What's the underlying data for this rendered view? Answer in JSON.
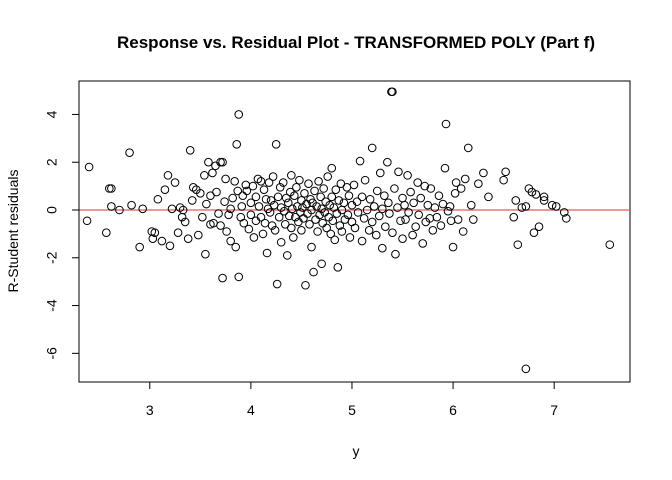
{
  "chart_data": {
    "type": "scatter",
    "title": "Response vs. Residual Plot - TRANSFORMED POLY (Part f)",
    "xlabel": "y",
    "ylabel": "R-Student residuals",
    "xlim": [
      2.3,
      7.75
    ],
    "ylim": [
      -7.2,
      5.4
    ],
    "xticks": [
      3,
      4,
      5,
      6,
      7
    ],
    "yticks": [
      -6,
      -4,
      -2,
      0,
      2,
      4
    ],
    "reference_line": {
      "y": 0,
      "color": "#e8595c"
    },
    "grid": false,
    "legend": "none",
    "point_color": "#000000",
    "points": [
      [
        2.4,
        1.8
      ],
      [
        2.38,
        -0.45
      ],
      [
        2.57,
        -0.95
      ],
      [
        2.6,
        0.9
      ],
      [
        2.62,
        0.9
      ],
      [
        2.62,
        0.15
      ],
      [
        2.7,
        0.0
      ],
      [
        2.8,
        2.4
      ],
      [
        2.82,
        0.2
      ],
      [
        2.9,
        -1.55
      ],
      [
        2.93,
        0.05
      ],
      [
        3.02,
        -0.9
      ],
      [
        3.03,
        -1.2
      ],
      [
        3.05,
        -0.95
      ],
      [
        3.08,
        0.45
      ],
      [
        3.12,
        -1.3
      ],
      [
        3.15,
        0.85
      ],
      [
        3.18,
        1.45
      ],
      [
        3.2,
        -1.5
      ],
      [
        3.22,
        0.05
      ],
      [
        3.25,
        1.15
      ],
      [
        3.28,
        -0.95
      ],
      [
        3.3,
        0.1
      ],
      [
        3.32,
        -0.3
      ],
      [
        3.33,
        0.0
      ],
      [
        3.35,
        -0.5
      ],
      [
        3.38,
        -1.2
      ],
      [
        3.4,
        2.5
      ],
      [
        3.42,
        0.4
      ],
      [
        3.43,
        0.95
      ],
      [
        3.46,
        0.85
      ],
      [
        3.48,
        -1.05
      ],
      [
        3.5,
        0.7
      ],
      [
        3.52,
        -0.3
      ],
      [
        3.54,
        1.45
      ],
      [
        3.55,
        -1.85
      ],
      [
        3.56,
        0.25
      ],
      [
        3.58,
        2.0
      ],
      [
        3.6,
        0.6
      ],
      [
        3.6,
        -0.6
      ],
      [
        3.62,
        1.55
      ],
      [
        3.63,
        -0.55
      ],
      [
        3.65,
        1.85
      ],
      [
        3.66,
        0.75
      ],
      [
        3.68,
        -0.15
      ],
      [
        3.7,
        2.0
      ],
      [
        3.7,
        -0.65
      ],
      [
        3.72,
        2.0
      ],
      [
        3.72,
        -2.85
      ],
      [
        3.74,
        0.35
      ],
      [
        3.75,
        1.3
      ],
      [
        3.76,
        -0.9
      ],
      [
        3.78,
        -0.2
      ],
      [
        3.8,
        0.05
      ],
      [
        3.8,
        -1.3
      ],
      [
        3.82,
        0.5
      ],
      [
        3.84,
        1.2
      ],
      [
        3.85,
        -1.55
      ],
      [
        3.86,
        2.75
      ],
      [
        3.87,
        0.8
      ],
      [
        3.88,
        4.0
      ],
      [
        3.88,
        -2.8
      ],
      [
        3.9,
        -0.3
      ],
      [
        3.91,
        0.15
      ],
      [
        3.92,
        0.6
      ],
      [
        3.93,
        -0.55
      ],
      [
        3.95,
        1.05
      ],
      [
        3.96,
        0.8
      ],
      [
        3.98,
        -0.8
      ],
      [
        4.0,
        0.3
      ],
      [
        4.0,
        -0.2
      ],
      [
        4.02,
        1.0
      ],
      [
        4.03,
        -1.15
      ],
      [
        4.05,
        0.55
      ],
      [
        4.05,
        -0.45
      ],
      [
        4.07,
        1.3
      ],
      [
        4.08,
        0.15
      ],
      [
        4.1,
        -0.3
      ],
      [
        4.1,
        1.2
      ],
      [
        4.12,
        -1.0
      ],
      [
        4.13,
        0.85
      ],
      [
        4.14,
        -0.55
      ],
      [
        4.15,
        0.45
      ],
      [
        4.16,
        -1.8
      ],
      [
        4.17,
        0.05
      ],
      [
        4.18,
        1.15
      ],
      [
        4.19,
        -0.1
      ],
      [
        4.2,
        0.4
      ],
      [
        4.21,
        -0.65
      ],
      [
        4.22,
        1.4
      ],
      [
        4.23,
        0.2
      ],
      [
        4.24,
        -0.85
      ],
      [
        4.25,
        2.75
      ],
      [
        4.26,
        -3.1
      ],
      [
        4.27,
        0.55
      ],
      [
        4.28,
        -0.3
      ],
      [
        4.29,
        0.95
      ],
      [
        4.3,
        -1.35
      ],
      [
        4.3,
        0.1
      ],
      [
        4.32,
        1.15
      ],
      [
        4.33,
        -0.05
      ],
      [
        4.34,
        -0.6
      ],
      [
        4.35,
        0.5
      ],
      [
        4.36,
        -1.9
      ],
      [
        4.37,
        0.3
      ],
      [
        4.38,
        -0.25
      ],
      [
        4.39,
        0.75
      ],
      [
        4.4,
        -0.75
      ],
      [
        4.4,
        1.45
      ],
      [
        4.41,
        0.05
      ],
      [
        4.42,
        -1.15
      ],
      [
        4.43,
        0.6
      ],
      [
        4.44,
        -0.3
      ],
      [
        4.45,
        0.95
      ],
      [
        4.46,
        0.15
      ],
      [
        4.47,
        -0.5
      ],
      [
        4.48,
        1.25
      ],
      [
        4.49,
        -0.1
      ],
      [
        4.5,
        0.4
      ],
      [
        4.5,
        -0.85
      ],
      [
        4.51,
        0.1
      ],
      [
        4.52,
        -0.35
      ],
      [
        4.53,
        0.7
      ],
      [
        4.54,
        -3.15
      ],
      [
        4.55,
        0.25
      ],
      [
        4.56,
        -0.15
      ],
      [
        4.57,
        1.1
      ],
      [
        4.58,
        -0.6
      ],
      [
        4.59,
        0.45
      ],
      [
        4.6,
        -1.55
      ],
      [
        4.6,
        0.0
      ],
      [
        4.61,
        0.3
      ],
      [
        4.62,
        -2.6
      ],
      [
        4.63,
        0.8
      ],
      [
        4.64,
        -0.4
      ],
      [
        4.65,
        0.15
      ],
      [
        4.66,
        -0.9
      ],
      [
        4.67,
        1.2
      ],
      [
        4.68,
        -0.2
      ],
      [
        4.69,
        0.55
      ],
      [
        4.7,
        -2.25
      ],
      [
        4.7,
        0.05
      ],
      [
        4.71,
        -0.55
      ],
      [
        4.72,
        0.9
      ],
      [
        4.73,
        -0.1
      ],
      [
        4.74,
        0.35
      ],
      [
        4.75,
        -0.75
      ],
      [
        4.76,
        1.4
      ],
      [
        4.77,
        -0.3
      ],
      [
        4.78,
        0.2
      ],
      [
        4.79,
        -1.0
      ],
      [
        4.8,
        1.75
      ],
      [
        4.8,
        0.55
      ],
      [
        4.81,
        -0.45
      ],
      [
        4.82,
        0.1
      ],
      [
        4.83,
        -1.25
      ],
      [
        4.84,
        0.85
      ],
      [
        4.85,
        -0.15
      ],
      [
        4.86,
        -2.4
      ],
      [
        4.87,
        0.4
      ],
      [
        4.88,
        -0.65
      ],
      [
        4.89,
        1.1
      ],
      [
        4.9,
        0.0
      ],
      [
        4.9,
        -0.9
      ],
      [
        4.92,
        0.3
      ],
      [
        4.93,
        -0.4
      ],
      [
        4.95,
        0.95
      ],
      [
        4.96,
        -0.2
      ],
      [
        4.97,
        0.6
      ],
      [
        4.98,
        -1.15
      ],
      [
        5.0,
        0.2
      ],
      [
        5.0,
        -0.5
      ],
      [
        5.02,
        1.05
      ],
      [
        5.03,
        -0.75
      ],
      [
        5.05,
        0.35
      ],
      [
        5.06,
        -0.1
      ],
      [
        5.08,
        2.05
      ],
      [
        5.1,
        -1.3
      ],
      [
        5.1,
        0.55
      ],
      [
        5.12,
        -0.35
      ],
      [
        5.13,
        1.25
      ],
      [
        5.15,
        0.0
      ],
      [
        5.17,
        -0.85
      ],
      [
        5.18,
        0.45
      ],
      [
        5.2,
        2.6
      ],
      [
        5.2,
        -0.5
      ],
      [
        5.22,
        0.15
      ],
      [
        5.24,
        -1.05
      ],
      [
        5.25,
        0.8
      ],
      [
        5.27,
        -0.25
      ],
      [
        5.28,
        1.55
      ],
      [
        5.3,
        0.05
      ],
      [
        5.3,
        -1.6
      ],
      [
        5.32,
        0.6
      ],
      [
        5.33,
        -0.7
      ],
      [
        5.35,
        2.0
      ],
      [
        5.36,
        0.3
      ],
      [
        5.37,
        -0.15
      ],
      [
        5.39,
        4.95
      ],
      [
        5.4,
        4.95
      ],
      [
        5.4,
        -0.95
      ],
      [
        5.42,
        0.9
      ],
      [
        5.43,
        -1.85
      ],
      [
        5.45,
        0.1
      ],
      [
        5.46,
        1.6
      ],
      [
        5.48,
        -0.45
      ],
      [
        5.5,
        0.5
      ],
      [
        5.5,
        -1.2
      ],
      [
        5.52,
        0.2
      ],
      [
        5.53,
        -0.4
      ],
      [
        5.55,
        1.45
      ],
      [
        5.56,
        -0.1
      ],
      [
        5.58,
        0.75
      ],
      [
        5.6,
        -1.05
      ],
      [
        5.61,
        0.3
      ],
      [
        5.63,
        -0.7
      ],
      [
        5.65,
        1.15
      ],
      [
        5.66,
        -0.2
      ],
      [
        5.68,
        0.5
      ],
      [
        5.7,
        -1.4
      ],
      [
        5.72,
        1.0
      ],
      [
        5.73,
        -0.5
      ],
      [
        5.75,
        0.2
      ],
      [
        5.77,
        -0.35
      ],
      [
        5.78,
        0.9
      ],
      [
        5.8,
        -0.85
      ],
      [
        5.82,
        0.1
      ],
      [
        5.84,
        -0.3
      ],
      [
        5.86,
        0.6
      ],
      [
        5.88,
        -0.65
      ],
      [
        5.9,
        0.25
      ],
      [
        5.92,
        1.75
      ],
      [
        5.93,
        3.6
      ],
      [
        5.95,
        -0.05
      ],
      [
        5.97,
        0.15
      ],
      [
        5.98,
        -0.45
      ],
      [
        6.0,
        -1.55
      ],
      [
        6.02,
        0.7
      ],
      [
        6.03,
        1.15
      ],
      [
        6.05,
        -0.4
      ],
      [
        6.08,
        0.9
      ],
      [
        6.1,
        -0.9
      ],
      [
        6.12,
        1.3
      ],
      [
        6.15,
        2.6
      ],
      [
        6.18,
        0.2
      ],
      [
        6.2,
        -0.4
      ],
      [
        6.25,
        1.1
      ],
      [
        6.3,
        1.55
      ],
      [
        6.35,
        0.55
      ],
      [
        6.5,
        1.25
      ],
      [
        6.52,
        1.6
      ],
      [
        6.6,
        -0.3
      ],
      [
        6.62,
        0.4
      ],
      [
        6.64,
        -1.45
      ],
      [
        6.68,
        0.1
      ],
      [
        6.72,
        0.15
      ],
      [
        6.72,
        -6.65
      ],
      [
        6.75,
        0.9
      ],
      [
        6.78,
        0.75
      ],
      [
        6.8,
        -0.95
      ],
      [
        6.82,
        0.65
      ],
      [
        6.85,
        -0.7
      ],
      [
        6.9,
        0.55
      ],
      [
        6.9,
        0.4
      ],
      [
        6.98,
        0.2
      ],
      [
        7.02,
        0.15
      ],
      [
        7.1,
        -0.1
      ],
      [
        7.12,
        -0.35
      ],
      [
        7.55,
        -1.45
      ]
    ]
  }
}
